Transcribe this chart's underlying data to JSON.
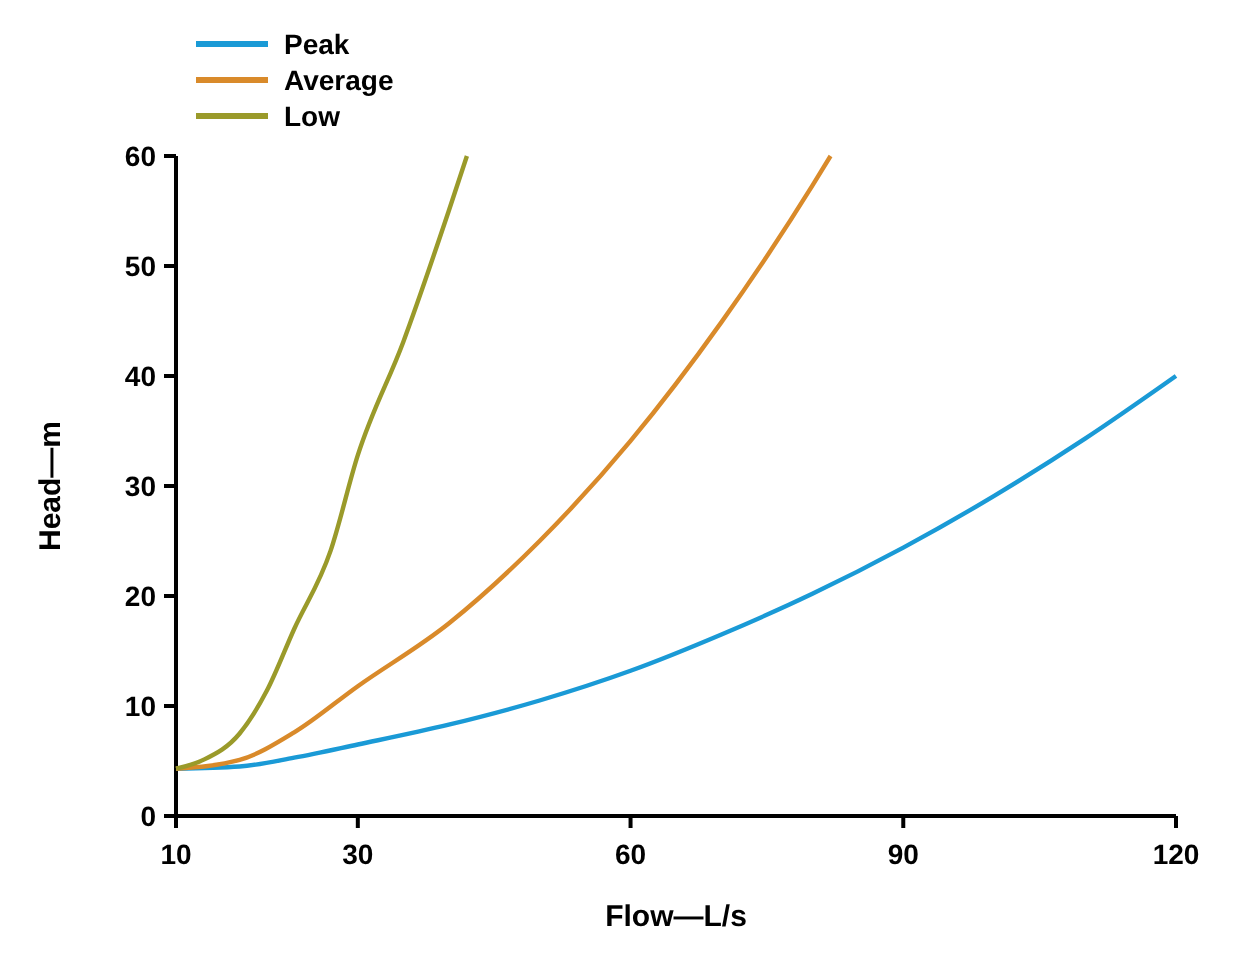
{
  "chart_data": {
    "type": "line",
    "xlabel": "Flow—L/s",
    "ylabel": "Head—m",
    "xlim": [
      10,
      120
    ],
    "xticks": [
      10,
      30,
      60,
      90,
      120
    ],
    "ylim": [
      0,
      60
    ],
    "yticks": [
      0,
      10,
      20,
      30,
      40,
      50,
      60
    ],
    "grid": false,
    "legend": "top left",
    "marker": "none",
    "line_style": "solid",
    "series": [
      {
        "name": "Peak",
        "color": "#1a9ad6",
        "x": [
          10,
          17,
          23,
          30,
          40,
          50,
          60,
          70,
          80,
          90,
          100,
          110,
          120
        ],
        "values": [
          4.3,
          4.5,
          5.3,
          6.5,
          8.3,
          10.5,
          13.2,
          16.5,
          20.2,
          24.4,
          29.1,
          34.3,
          40
        ]
      },
      {
        "name": "Average",
        "color": "#d98a2a",
        "x": [
          10,
          17,
          23,
          30,
          40,
          50,
          60,
          70,
          80,
          82
        ],
        "values": [
          4.3,
          5.1,
          7.6,
          11.8,
          17.5,
          25,
          34.1,
          44.9,
          57.3,
          60
        ]
      },
      {
        "name": "Low",
        "color": "#9a9a2a",
        "x": [
          10,
          13,
          17,
          20,
          23,
          27,
          30,
          35,
          40,
          42
        ],
        "values": [
          4.3,
          5.1,
          7.5,
          11.4,
          17,
          24.1,
          32.8,
          43.1,
          55,
          60
        ]
      }
    ]
  }
}
